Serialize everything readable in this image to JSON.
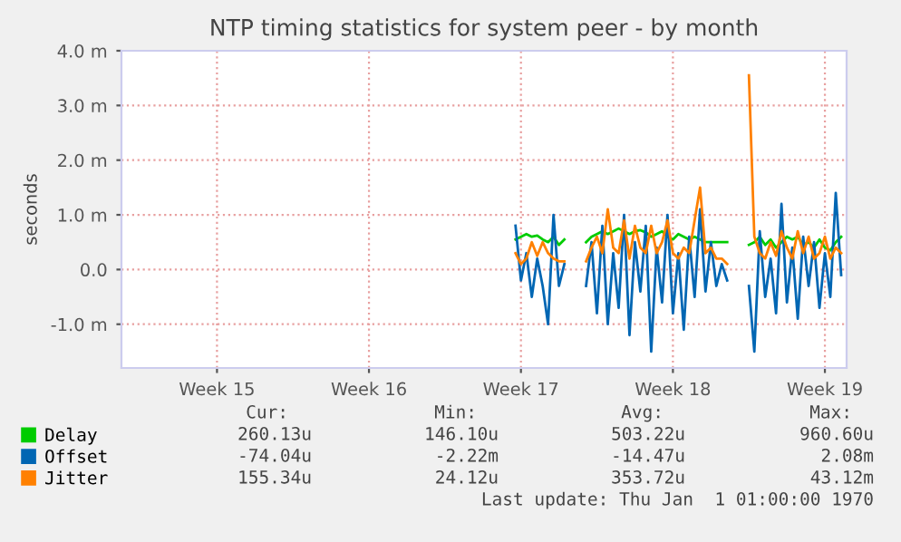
{
  "chart_data": {
    "type": "line",
    "title": "NTP timing statistics for system peer - by month",
    "ylabel": "seconds",
    "x": [
      "1970-04-23T06:00",
      "1970-04-23T12:00",
      "1970-04-23T18:00",
      "1970-04-24T00:00",
      "1970-04-24T06:00",
      "1970-04-24T12:00",
      "1970-04-24T18:00",
      "1970-04-25T00:00",
      "1970-04-25T06:00",
      "1970-04-25T12:00",
      "1970-04-25T18:00",
      "1970-04-26T00:00",
      "1970-04-26T06:00",
      "1970-04-26T12:00",
      "1970-04-26T18:00",
      "1970-04-27T00:00",
      "1970-04-27T06:00",
      "1970-04-27T12:00",
      "1970-04-27T18:00",
      "1970-04-28T00:00",
      "1970-04-28T06:00",
      "1970-04-28T12:00",
      "1970-04-28T18:00",
      "1970-04-29T00:00",
      "1970-04-29T06:00",
      "1970-04-29T12:00",
      "1970-04-29T18:00",
      "1970-04-30T00:00",
      "1970-04-30T06:00",
      "1970-04-30T12:00",
      "1970-04-30T18:00",
      "1970-05-01T00:00",
      "1970-05-01T06:00",
      "1970-05-01T12:00",
      "1970-05-01T18:00",
      "1970-05-02T00:00",
      "1970-05-02T06:00",
      "1970-05-02T12:00",
      "1970-05-02T18:00",
      "1970-05-03T00:00",
      "1970-05-03T06:00",
      "1970-05-03T12:00",
      "1970-05-03T18:00",
      "1970-05-04T00:00",
      "1970-05-04T06:00",
      "1970-05-04T12:00",
      "1970-05-04T18:00",
      "1970-05-05T00:00",
      "1970-05-05T06:00",
      "1970-05-05T12:00",
      "1970-05-05T18:00",
      "1970-05-06T00:00",
      "1970-05-06T06:00",
      "1970-05-06T12:00",
      "1970-05-06T18:00",
      "1970-05-07T00:00",
      "1970-05-07T06:00",
      "1970-05-07T12:00",
      "1970-05-07T18:00",
      "1970-05-08T00:00",
      "1970-05-08T06:00"
    ],
    "series": [
      {
        "name": "Delay",
        "color": "#00cc00",
        "values": [
          0.55,
          0.6,
          0.65,
          0.6,
          0.62,
          0.55,
          0.5,
          0.6,
          0.45,
          0.55,
          null,
          null,
          null,
          0.5,
          0.6,
          0.65,
          0.7,
          0.65,
          0.7,
          0.75,
          0.7,
          0.65,
          0.7,
          0.72,
          0.68,
          0.6,
          0.65,
          0.7,
          0.6,
          0.55,
          0.65,
          0.6,
          0.55,
          0.6,
          0.55,
          0.5,
          0.5,
          0.5,
          0.5,
          0.5,
          null,
          null,
          null,
          0.45,
          0.5,
          0.6,
          0.45,
          0.55,
          0.4,
          0.5,
          0.6,
          0.55,
          0.6,
          0.45,
          0.5,
          0.4,
          0.55,
          0.4,
          0.35,
          0.5,
          0.6
        ]
      },
      {
        "name": "Offset",
        "color": "#0066b3",
        "values": [
          0.8,
          -0.2,
          0.3,
          -0.5,
          0.2,
          -0.3,
          -1.0,
          1.0,
          -0.3,
          0.1,
          null,
          null,
          null,
          -0.3,
          0.5,
          -0.8,
          0.8,
          -1.0,
          0.3,
          -0.7,
          1.0,
          -1.2,
          0.5,
          -0.4,
          0.8,
          -1.5,
          0.4,
          -0.6,
          1.0,
          -0.8,
          0.3,
          -1.1,
          0.6,
          -0.5,
          1.1,
          -0.4,
          0.5,
          -0.3,
          0.1,
          -0.2,
          null,
          null,
          null,
          -0.3,
          -1.5,
          0.7,
          -0.5,
          0.2,
          -0.8,
          1.2,
          -0.6,
          0.4,
          -0.9,
          0.6,
          -0.3,
          0.5,
          -0.7,
          0.3,
          -0.5,
          1.4,
          -0.1
        ]
      },
      {
        "name": "Jitter",
        "color": "#ff8000",
        "values": [
          0.3,
          0.1,
          0.2,
          0.5,
          0.25,
          0.5,
          0.3,
          0.2,
          0.15,
          0.15,
          null,
          null,
          null,
          0.15,
          0.4,
          0.6,
          0.3,
          1.1,
          0.4,
          0.3,
          0.9,
          0.2,
          0.8,
          0.4,
          0.3,
          0.8,
          0.3,
          0.5,
          0.9,
          0.3,
          0.2,
          0.4,
          0.3,
          0.9,
          1.5,
          0.3,
          0.4,
          0.2,
          0.2,
          0.1,
          null,
          null,
          null,
          3.55,
          0.6,
          0.3,
          0.2,
          0.5,
          0.25,
          0.7,
          0.4,
          0.2,
          0.7,
          0.3,
          0.6,
          0.2,
          0.3,
          0.6,
          0.2,
          0.4,
          0.3
        ]
      }
    ],
    "xlim": [
      "1970-04-05T02:24",
      "1970-05-08T12:00"
    ],
    "xticks": [
      {
        "value": "1970-04-09T12:00",
        "label": "Week 15"
      },
      {
        "value": "1970-04-16T12:00",
        "label": "Week 16"
      },
      {
        "value": "1970-04-23T12:00",
        "label": "Week 17"
      },
      {
        "value": "1970-04-30T12:00",
        "label": "Week 18"
      },
      {
        "value": "1970-05-07T12:00",
        "label": "Week 19"
      }
    ],
    "ylim": [
      -1.8,
      4.0
    ],
    "yticks": [
      {
        "value": -1.0,
        "label": "-1.0 m"
      },
      {
        "value": 0.0,
        "label": "0.0"
      },
      {
        "value": 1.0,
        "label": "1.0 m"
      },
      {
        "value": 2.0,
        "label": "2.0 m"
      },
      {
        "value": 3.0,
        "label": "3.0 m"
      },
      {
        "value": 4.0,
        "label": "4.0 m"
      }
    ],
    "grid": true,
    "legend": "bottom",
    "marker": "none",
    "line_style": "solid",
    "annotations": [
      "Cur:",
      "Min:",
      "Avg:",
      "Max:",
      "260.13u",
      "146.10u",
      "503.22u",
      "960.60u",
      "-74.04u",
      "-2.22m",
      "-14.47u",
      "2.08m",
      "155.34u",
      "24.12u",
      "353.72u",
      "43.12m",
      "Last update: Thu Jan  1 01:00:00 1970"
    ]
  }
}
